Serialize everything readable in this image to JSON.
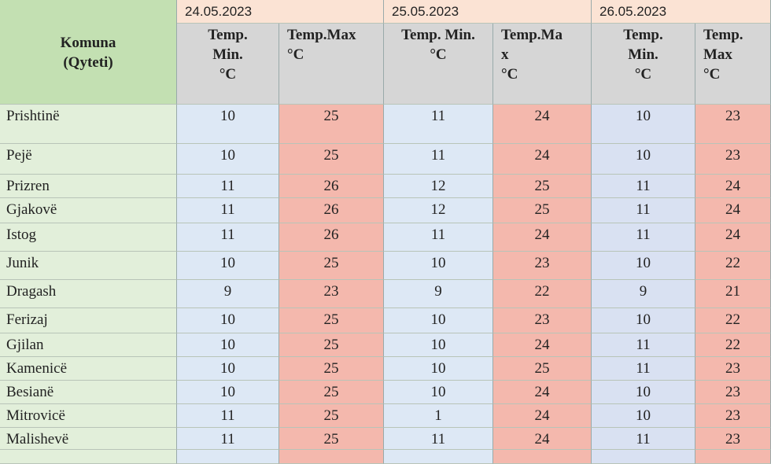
{
  "table": {
    "corner": "Komuna\n(Qyteti)",
    "dates": [
      "24.05.2023",
      "25.05.2023",
      "26.05.2023"
    ],
    "columns": [
      "Temp.\nMin.\n°C",
      "Temp.Max\n°C",
      "Temp. Min.\n°C",
      "Temp.Ma\nx\n°C",
      "Temp.\nMin.\n°C",
      "Temp.\nMax\n°C"
    ],
    "rows": [
      {
        "name": "Prishtinë",
        "values": [
          10,
          25,
          11,
          24,
          10,
          23
        ]
      },
      {
        "name": "Pejë",
        "values": [
          10,
          25,
          11,
          24,
          10,
          23
        ]
      },
      {
        "name": "Prizren",
        "values": [
          11,
          26,
          12,
          25,
          11,
          24
        ]
      },
      {
        "name": "Gjakovë",
        "values": [
          11,
          26,
          12,
          25,
          11,
          24
        ]
      },
      {
        "name": "Istog",
        "values": [
          11,
          26,
          11,
          24,
          11,
          24
        ]
      },
      {
        "name": "Junik",
        "values": [
          10,
          25,
          10,
          23,
          10,
          22
        ]
      },
      {
        "name": "Dragash",
        "values": [
          9,
          23,
          9,
          22,
          9,
          21
        ]
      },
      {
        "name": "Ferizaj",
        "values": [
          10,
          25,
          10,
          23,
          10,
          22
        ]
      },
      {
        "name": "Gjilan",
        "values": [
          10,
          25,
          10,
          24,
          11,
          22
        ]
      },
      {
        "name": "Kamenicë",
        "values": [
          10,
          25,
          10,
          25,
          11,
          23
        ]
      },
      {
        "name": "Besianë",
        "values": [
          10,
          25,
          10,
          24,
          10,
          23
        ]
      },
      {
        "name": "Mitrovicë",
        "values": [
          11,
          25,
          1,
          24,
          10,
          23
        ]
      },
      {
        "name": "Malishevë",
        "values": [
          11,
          25,
          11,
          24,
          11,
          23
        ]
      }
    ]
  }
}
